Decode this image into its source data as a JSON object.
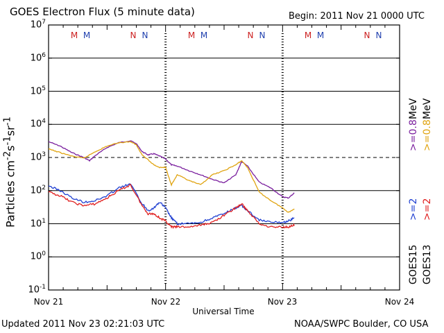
{
  "header": {
    "title": "GOES Electron Flux (5 minute data)",
    "begin": "Begin: 2011 Nov 21 0000 UTC"
  },
  "footer": {
    "updated": "Updated 2011 Nov 23 02:21:03 UTC",
    "credit": "NOAA/SWPC Boulder, CO USA"
  },
  "colors": {
    "purple": "#7a1f9e",
    "gold": "#e0a411",
    "blue": "#1f3fd1",
    "red": "#e01f1f",
    "marker_red": "#cc1f1f",
    "marker_blue": "#1f3fae"
  },
  "markers": {
    "m_label": "M",
    "n_label": "N"
  },
  "legend": {
    "goes15": "GOES15",
    "goes13": "GOES13",
    "blue_label": ">=2",
    "red_label": ">=2",
    "purple_label": ">=0.8",
    "gold_label": ">=0.8",
    "unit1": "MeV",
    "unit2": "MeV"
  },
  "chart_data": {
    "type": "line",
    "title": "GOES Electron Flux (5 minute data)",
    "xlabel": "Universal Time",
    "ylabel": "Particles cm-2s-1sr-1",
    "yscale": "log",
    "ylim": [
      0.1,
      10000000
    ],
    "ylim_exponents": [
      -1,
      7
    ],
    "xlim_days": [
      0,
      3
    ],
    "x_tick_labels": [
      "Nov 21",
      "Nov 22",
      "Nov 23",
      "Nov 24"
    ],
    "y_tick_labels": [
      {
        "base": "10",
        "exp": "7"
      },
      {
        "base": "10",
        "exp": "6"
      },
      {
        "base": "10",
        "exp": "5"
      },
      {
        "base": "10",
        "exp": "4"
      },
      {
        "base": "10",
        "exp": "3"
      },
      {
        "base": "10",
        "exp": "2"
      },
      {
        "base": "10",
        "exp": "1"
      },
      {
        "base": "10",
        "exp": "0"
      },
      {
        "base": "10",
        "exp": "-1"
      }
    ],
    "reference_line_dashed": 1000,
    "midnight_markers_days": [
      0.37,
      0.44,
      0.87,
      0.95,
      1.17,
      1.24,
      1.67,
      1.77,
      2.2,
      2.28,
      2.7,
      2.78
    ],
    "series": [
      {
        "name": "GOES15 >=0.8 MeV",
        "color": "purple",
        "x": [
          0,
          0.1,
          0.2,
          0.3,
          0.35,
          0.4,
          0.5,
          0.6,
          0.7,
          0.75,
          0.8,
          0.85,
          0.9,
          0.95,
          1.0,
          1.05,
          1.1,
          1.2,
          1.3,
          1.4,
          1.5,
          1.6,
          1.65,
          1.7,
          1.8,
          1.9,
          2.0,
          2.05,
          2.1
        ],
        "y": [
          3000,
          2200,
          1400,
          1000,
          800,
          1150,
          2000,
          2800,
          3200,
          2600,
          1500,
          1200,
          1300,
          1100,
          900,
          600,
          550,
          400,
          300,
          220,
          170,
          300,
          750,
          550,
          180,
          120,
          65,
          60,
          85
        ]
      },
      {
        "name": "GOES13 >=0.8 MeV",
        "color": "gold",
        "x": [
          0,
          0.1,
          0.2,
          0.3,
          0.4,
          0.5,
          0.6,
          0.7,
          0.75,
          0.8,
          0.9,
          0.95,
          1.0,
          1.05,
          1.1,
          1.2,
          1.3,
          1.4,
          1.5,
          1.6,
          1.65,
          1.7,
          1.8,
          1.9,
          2.0,
          2.05,
          2.1
        ],
        "y": [
          1800,
          1400,
          1100,
          950,
          1500,
          2200,
          2800,
          3000,
          2400,
          1200,
          600,
          500,
          500,
          150,
          300,
          200,
          150,
          300,
          400,
          600,
          800,
          500,
          90,
          50,
          30,
          22,
          28
        ]
      },
      {
        "name": "GOES15 >=2 MeV",
        "color": "blue",
        "x": [
          0,
          0.1,
          0.2,
          0.3,
          0.4,
          0.5,
          0.6,
          0.7,
          0.8,
          0.85,
          0.9,
          0.95,
          1.0,
          1.05,
          1.1,
          1.2,
          1.3,
          1.4,
          1.5,
          1.6,
          1.65,
          1.7,
          1.8,
          1.9,
          2.0,
          2.05,
          2.1
        ],
        "y": [
          140,
          100,
          60,
          45,
          50,
          70,
          120,
          160,
          40,
          25,
          30,
          45,
          30,
          15,
          10,
          10,
          11,
          15,
          20,
          30,
          35,
          25,
          13,
          11,
          11,
          12,
          15
        ]
      },
      {
        "name": "GOES13 >=2 MeV",
        "color": "red",
        "x": [
          0,
          0.1,
          0.2,
          0.3,
          0.4,
          0.5,
          0.6,
          0.7,
          0.8,
          0.85,
          0.9,
          0.95,
          1.0,
          1.05,
          1.1,
          1.2,
          1.3,
          1.4,
          1.5,
          1.6,
          1.65,
          1.7,
          1.8,
          1.9,
          2.0,
          2.05,
          2.1
        ],
        "y": [
          90,
          70,
          45,
          35,
          40,
          60,
          100,
          150,
          35,
          20,
          20,
          15,
          12,
          8,
          8,
          8,
          9,
          11,
          18,
          30,
          40,
          25,
          10,
          8,
          8,
          8,
          9
        ]
      }
    ]
  }
}
